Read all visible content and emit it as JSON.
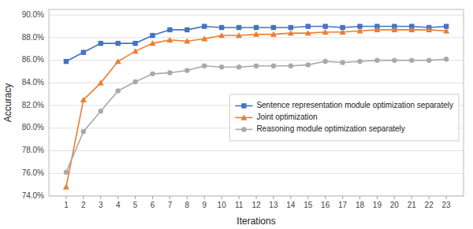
{
  "chart_data": {
    "type": "line",
    "x_label": "Iterations",
    "y_label": "Accuracy",
    "x": [
      1,
      2,
      3,
      4,
      5,
      6,
      7,
      8,
      9,
      10,
      11,
      12,
      13,
      14,
      15,
      16,
      17,
      18,
      19,
      20,
      21,
      22,
      23
    ],
    "series": [
      {
        "name": "Sentence representation module optimization separately",
        "color": "#4472C4",
        "marker": "square",
        "values": [
          85.9,
          86.7,
          87.5,
          87.5,
          87.5,
          88.2,
          88.7,
          88.7,
          89.0,
          88.9,
          88.9,
          88.9,
          88.9,
          88.9,
          89.0,
          89.0,
          88.9,
          89.0,
          89.0,
          89.0,
          89.0,
          88.9,
          89.0
        ]
      },
      {
        "name": "Joint optimization",
        "color": "#ED7D31",
        "marker": "triangle",
        "values": [
          74.8,
          82.5,
          84.0,
          85.9,
          86.8,
          87.5,
          87.8,
          87.7,
          87.9,
          88.2,
          88.2,
          88.3,
          88.3,
          88.4,
          88.4,
          88.5,
          88.5,
          88.6,
          88.7,
          88.7,
          88.7,
          88.7,
          88.6
        ]
      },
      {
        "name": "Reasoning module optimization separately",
        "color": "#A9A9A9",
        "marker": "circle",
        "values": [
          76.1,
          79.7,
          81.5,
          83.3,
          84.1,
          84.8,
          84.9,
          85.1,
          85.5,
          85.4,
          85.4,
          85.5,
          85.5,
          85.5,
          85.6,
          85.9,
          85.8,
          85.9,
          86.0,
          86.0,
          86.0,
          86.0,
          86.1
        ]
      }
    ],
    "xlim": [
      0,
      24
    ],
    "xticks": [
      1,
      2,
      3,
      4,
      5,
      6,
      7,
      8,
      9,
      10,
      11,
      12,
      13,
      14,
      15,
      16,
      17,
      18,
      19,
      20,
      21,
      22,
      23
    ],
    "ylim": [
      74.0,
      90.5
    ],
    "yticks": [
      {
        "value": 74.0,
        "label": "74.0%"
      },
      {
        "value": 76.0,
        "label": "76.0%"
      },
      {
        "value": 78.0,
        "label": "78.0%"
      },
      {
        "value": 80.0,
        "label": "80.0%"
      },
      {
        "value": 82.0,
        "label": "82.0%"
      },
      {
        "value": 84.0,
        "label": "84.0%"
      },
      {
        "value": 86.0,
        "label": "86.0%"
      },
      {
        "value": 88.0,
        "label": "88.0%"
      },
      {
        "value": 90.0,
        "label": "90.0%"
      }
    ],
    "grid": true,
    "legend": "right"
  }
}
